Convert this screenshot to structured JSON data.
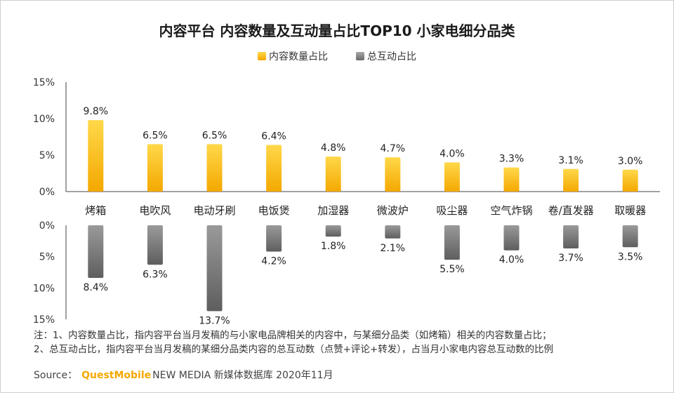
{
  "title": "内容平台 内容数量及互动量占比TOP10 小家电细分品类",
  "colors": {
    "content": "#f6b400",
    "interaction": "#8a8a8a",
    "axis": "#444444"
  },
  "chart_data": {
    "type": "bar",
    "categories": [
      "烤箱",
      "电吹风",
      "电动牙刷",
      "电饭煲",
      "加湿器",
      "微波炉",
      "吸尘器",
      "空气炸锅",
      "卷/直发器",
      "取暖器"
    ],
    "series": [
      {
        "name": "内容数量占比",
        "values": [
          9.8,
          6.5,
          6.5,
          6.4,
          4.8,
          4.7,
          4.0,
          3.3,
          3.1,
          3.0
        ],
        "labels": [
          "9.8%",
          "6.5%",
          "6.5%",
          "6.4%",
          "4.8%",
          "4.7%",
          "4.0%",
          "3.3%",
          "3.1%",
          "3.0%"
        ]
      },
      {
        "name": "总互动占比",
        "values": [
          8.4,
          6.3,
          13.7,
          4.2,
          1.8,
          2.1,
          5.5,
          4.0,
          3.7,
          3.5
        ],
        "labels": [
          "8.4%",
          "6.3%",
          "13.7%",
          "4.2%",
          "1.8%",
          "2.1%",
          "5.5%",
          "4.0%",
          "3.7%",
          "3.5%"
        ]
      }
    ],
    "upper_axis": {
      "ylim": [
        0,
        15
      ],
      "ticks": [
        "0%",
        "5%",
        "10%",
        "15%"
      ],
      "tick_values": [
        0,
        5,
        10,
        15
      ]
    },
    "lower_axis": {
      "ylim": [
        0,
        15
      ],
      "ticks": [
        "0%",
        "5%",
        "10%",
        "15%"
      ],
      "tick_values": [
        0,
        5,
        10,
        15
      ],
      "inverted": true
    },
    "legend_position": "top-center"
  },
  "notes": [
    "注：1、内容数量占比，指内容平台当月发稿的与小家电品牌相关的内容中，与某细分品类（如烤箱）相关的内容数量占比；",
    "2、总互动占比，指内容平台当月发稿的某细分品类内容的总互动数（点赞+评论+转发），占当月小家电内容总互动数的比例"
  ],
  "source": {
    "prefix": "Source：",
    "brand": "QuestMobile",
    "rest": "NEW MEDIA 新媒体数据库 2020年11月"
  }
}
